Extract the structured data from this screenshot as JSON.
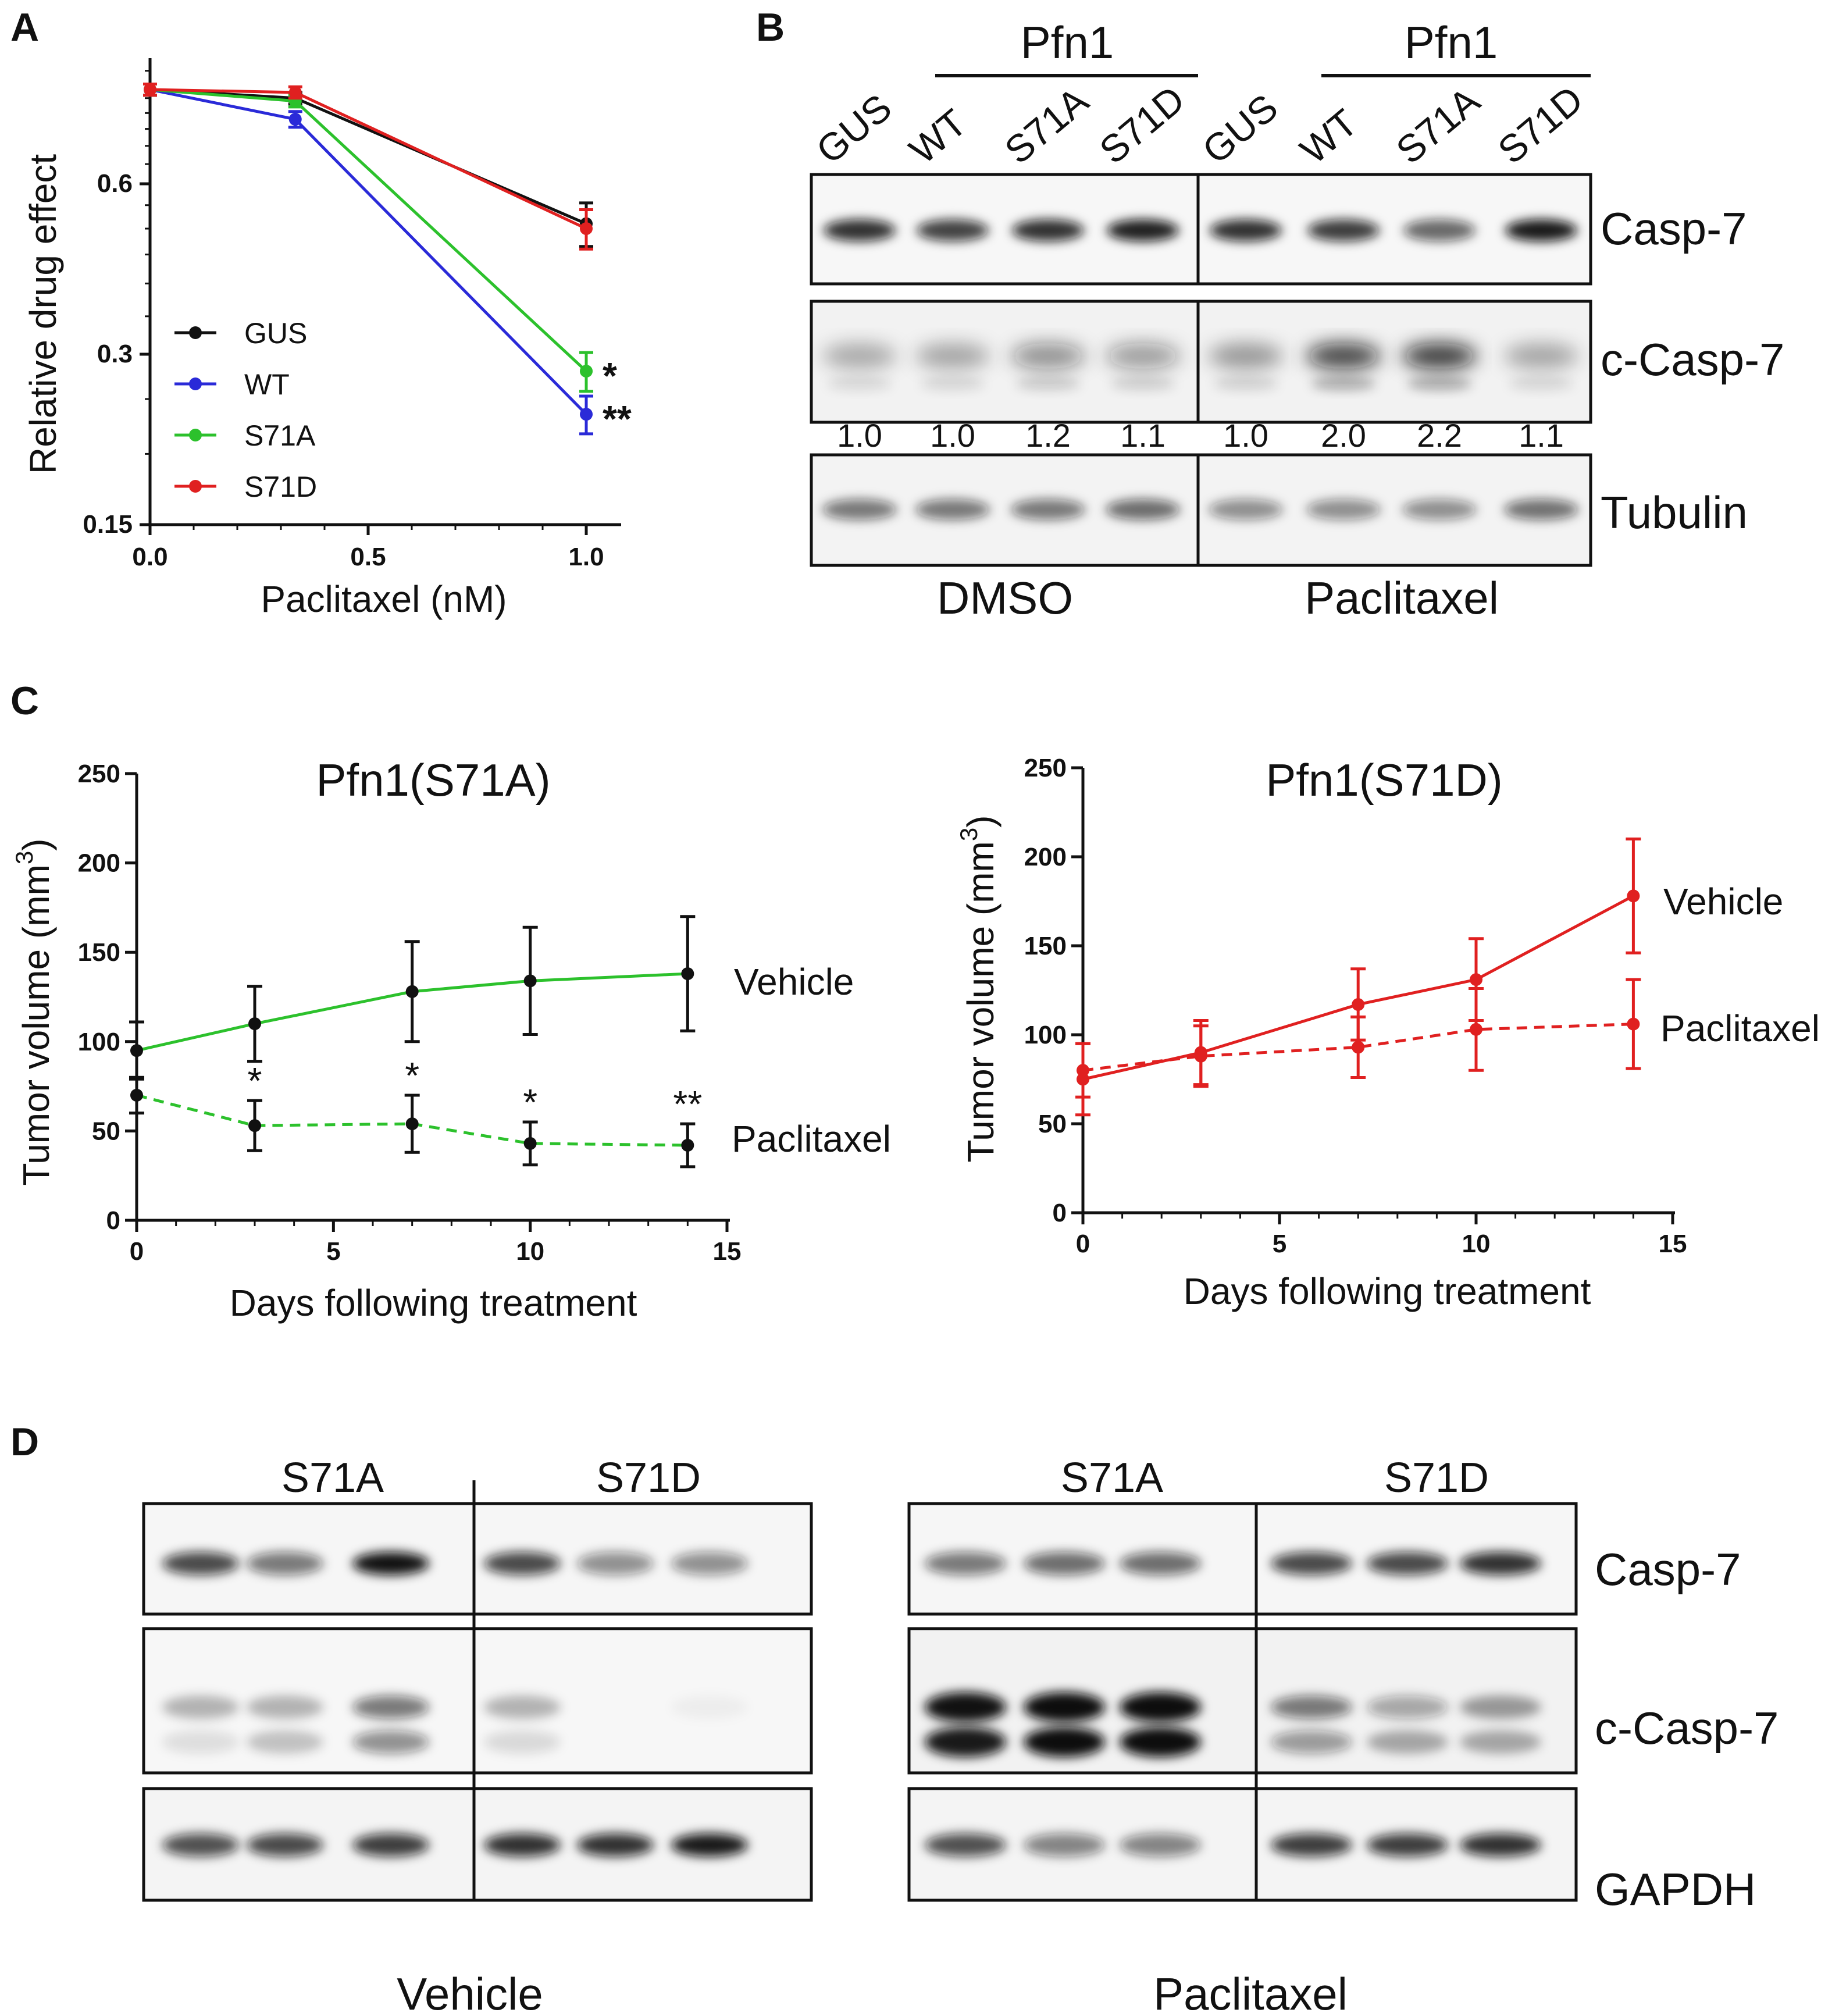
{
  "panels": {
    "a": "A",
    "b": "B",
    "c": "C",
    "d": "D"
  },
  "chart_data": [
    {
      "id": "panel-a",
      "type": "line",
      "xlabel": "Paclitaxel (nM)",
      "ylabel": "Relative drug effect",
      "x": [
        0.0,
        0.333,
        1.0
      ],
      "xticks": [
        "0.0",
        "0.5",
        "1.0"
      ],
      "xtick_values": [
        0,
        0.5,
        1.0
      ],
      "yticks": [
        "0.15",
        "0.3",
        "0.6"
      ],
      "ytick_values": [
        0.15,
        0.3,
        0.6
      ],
      "yscale": "log2",
      "xlim": [
        0,
        1.08
      ],
      "ylim": [
        0.15,
        1.0
      ],
      "series": [
        {
          "name": "GUS",
          "color": "#111111",
          "values": [
            0.88,
            0.85,
            0.51
          ],
          "errors": [
            0.02,
            0.02,
            0.045
          ],
          "sig": ""
        },
        {
          "name": "WT",
          "color": "#2a2ad8",
          "values": [
            0.88,
            0.78,
            0.235
          ],
          "errors": [
            0.02,
            0.025,
            0.018
          ],
          "sig": "**"
        },
        {
          "name": "S71A",
          "color": "#2cc12c",
          "values": [
            0.88,
            0.84,
            0.28
          ],
          "errors": [
            0.02,
            0.02,
            0.022
          ],
          "sig": "*"
        },
        {
          "name": "S71D",
          "color": "#e02020",
          "values": [
            0.88,
            0.87,
            0.5
          ],
          "errors": [
            0.02,
            0.02,
            0.04
          ],
          "sig": ""
        }
      ],
      "legend": [
        "GUS",
        "WT",
        "S71A",
        "S71D"
      ]
    },
    {
      "id": "panel-c-s71a",
      "type": "line",
      "title": "Pfn1(S71A)",
      "xlabel": "Days following treatment",
      "ylabel": "Tumor volume (mm",
      "ylabel_sup": "3",
      "ylabel_end": ")",
      "xticks": [
        "0",
        "5",
        "10",
        "15"
      ],
      "xtick_values": [
        0,
        5,
        10,
        15
      ],
      "yticks": [
        "0",
        "50",
        "100",
        "150",
        "200",
        "250"
      ],
      "ytick_values": [
        0,
        50,
        100,
        150,
        200,
        250
      ],
      "xlim": [
        0,
        15
      ],
      "ylim": [
        0,
        250
      ],
      "x": [
        0,
        3,
        7,
        10,
        14
      ],
      "series": [
        {
          "name": "Vehicle",
          "color": "#2cc12c",
          "dashed": false,
          "values": [
            95,
            110,
            128,
            134,
            138
          ],
          "errors": [
            16,
            21,
            28,
            30,
            32
          ]
        },
        {
          "name": "Paclitaxel",
          "color": "#2cc12c",
          "dashed": true,
          "values": [
            70,
            53,
            54,
            43,
            42
          ],
          "errors": [
            10,
            14,
            16,
            12,
            12
          ],
          "sig": [
            "",
            "*",
            "*",
            "*",
            "**"
          ]
        }
      ],
      "labels": {
        "vehicle": "Vehicle",
        "paclitaxel": "Paclitaxel"
      }
    },
    {
      "id": "panel-c-s71d",
      "type": "line",
      "title": "Pfn1(S71D)",
      "xlabel": "Days following treatment",
      "ylabel": "Tumor volume (mm",
      "ylabel_sup": "3",
      "ylabel_end": ")",
      "xticks": [
        "0",
        "5",
        "10",
        "15"
      ],
      "xtick_values": [
        0,
        5,
        10,
        15
      ],
      "yticks": [
        "0",
        "50",
        "100",
        "150",
        "200",
        "250"
      ],
      "ytick_values": [
        0,
        50,
        100,
        150,
        200,
        250
      ],
      "xlim": [
        0,
        15
      ],
      "ylim": [
        0,
        250
      ],
      "x": [
        0,
        3,
        7,
        10,
        14
      ],
      "series": [
        {
          "name": "Vehicle",
          "color": "#e02020",
          "dashed": false,
          "values": [
            75,
            90,
            117,
            131,
            178
          ],
          "errors": [
            20,
            18,
            20,
            23,
            32
          ]
        },
        {
          "name": "Paclitaxel",
          "color": "#e02020",
          "dashed": true,
          "values": [
            80,
            88,
            93,
            103,
            106
          ],
          "errors": [
            15,
            17,
            17,
            23,
            25
          ]
        }
      ],
      "labels": {
        "vehicle": "Vehicle",
        "paclitaxel": "Paclitaxel"
      }
    }
  ],
  "blot_b": {
    "group_header": "Pfn1",
    "lanes": [
      "GUS",
      "WT",
      "S71A",
      "S71D",
      "GUS",
      "WT",
      "S71A",
      "S71D"
    ],
    "rows": [
      "Casp-7",
      "c-Casp-7",
      "Tubulin"
    ],
    "quant": [
      "1.0",
      "1.0",
      "1.2",
      "1.1",
      "1.0",
      "2.0",
      "2.2",
      "1.1"
    ],
    "conditions": [
      "DMSO",
      "Paclitaxel"
    ]
  },
  "blot_d": {
    "groups": [
      "S71A",
      "S71D",
      "S71A",
      "S71D"
    ],
    "rows": [
      "Casp-7",
      "c-Casp-7",
      "GAPDH"
    ],
    "conditions": [
      "Vehicle",
      "Paclitaxel"
    ]
  }
}
